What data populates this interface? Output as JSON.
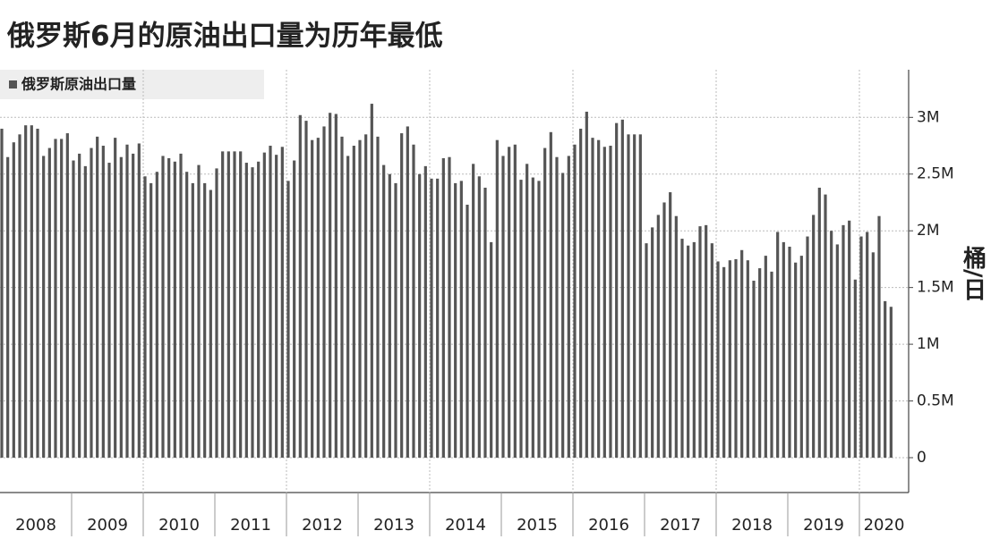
{
  "chart_data": {
    "type": "bar",
    "title": "俄罗斯6月的原油出口量为历年最低",
    "y_label": "桶/日",
    "x_labels": [
      "2008",
      "2009",
      "2010",
      "2011",
      "2012",
      "2013",
      "2014",
      "2015",
      "2016",
      "2017",
      "2018",
      "2019",
      "2020"
    ],
    "series": [
      {
        "name": "俄罗斯原油出口量",
        "color": "#555555",
        "values": [
          2.9,
          2.65,
          2.78,
          2.85,
          2.93,
          2.93,
          2.9,
          2.66,
          2.73,
          2.81,
          2.81,
          2.86,
          2.62,
          2.68,
          2.57,
          2.73,
          2.83,
          2.75,
          2.6,
          2.82,
          2.65,
          2.76,
          2.68,
          2.77,
          2.48,
          2.42,
          2.52,
          2.66,
          2.64,
          2.61,
          2.68,
          2.52,
          2.42,
          2.58,
          2.42,
          2.36,
          2.55,
          2.7,
          2.7,
          2.7,
          2.7,
          2.6,
          2.56,
          2.61,
          2.69,
          2.75,
          2.67,
          2.74,
          2.44,
          2.62,
          3.02,
          2.97,
          2.8,
          2.82,
          2.92,
          3.04,
          3.03,
          2.83,
          2.66,
          2.75,
          2.8,
          2.85,
          3.12,
          2.83,
          2.58,
          2.5,
          2.42,
          2.86,
          2.92,
          2.76,
          2.5,
          2.57,
          2.46,
          2.46,
          2.64,
          2.65,
          2.42,
          2.44,
          2.23,
          2.59,
          2.48,
          2.38,
          1.9,
          2.8,
          2.66,
          2.74,
          2.76,
          2.45,
          2.59,
          2.47,
          2.44,
          2.73,
          2.87,
          2.65,
          2.51,
          2.66,
          2.76,
          2.9,
          3.05,
          2.82,
          2.8,
          2.74,
          2.75,
          2.95,
          2.98,
          2.85,
          2.85,
          2.85,
          1.89,
          2.03,
          2.14,
          2.25,
          2.34,
          2.13,
          1.93,
          1.87,
          1.9,
          2.04,
          2.05,
          1.89,
          1.73,
          1.68,
          1.74,
          1.75,
          1.83,
          1.74,
          1.56,
          1.67,
          1.78,
          1.64,
          1.99,
          1.9,
          1.86,
          1.72,
          1.78,
          1.95,
          2.14,
          2.38,
          2.32,
          2.0,
          1.88,
          2.05,
          2.09,
          1.57,
          1.95,
          1.99,
          1.81,
          2.13,
          1.38,
          1.33
        ]
      }
    ],
    "ylim": [
      0,
      3.42
    ],
    "yticks": [
      0,
      {
        "value": 0.5,
        "label": "0.5M"
      },
      {
        "value": 1,
        "label": "1M"
      },
      {
        "value": 1.5,
        "label": "1.5M"
      },
      {
        "value": 2,
        "label": "2M"
      },
      {
        "value": 2.5,
        "label": "2.5M"
      },
      {
        "value": 3,
        "label": "3M"
      }
    ],
    "grid": true
  }
}
